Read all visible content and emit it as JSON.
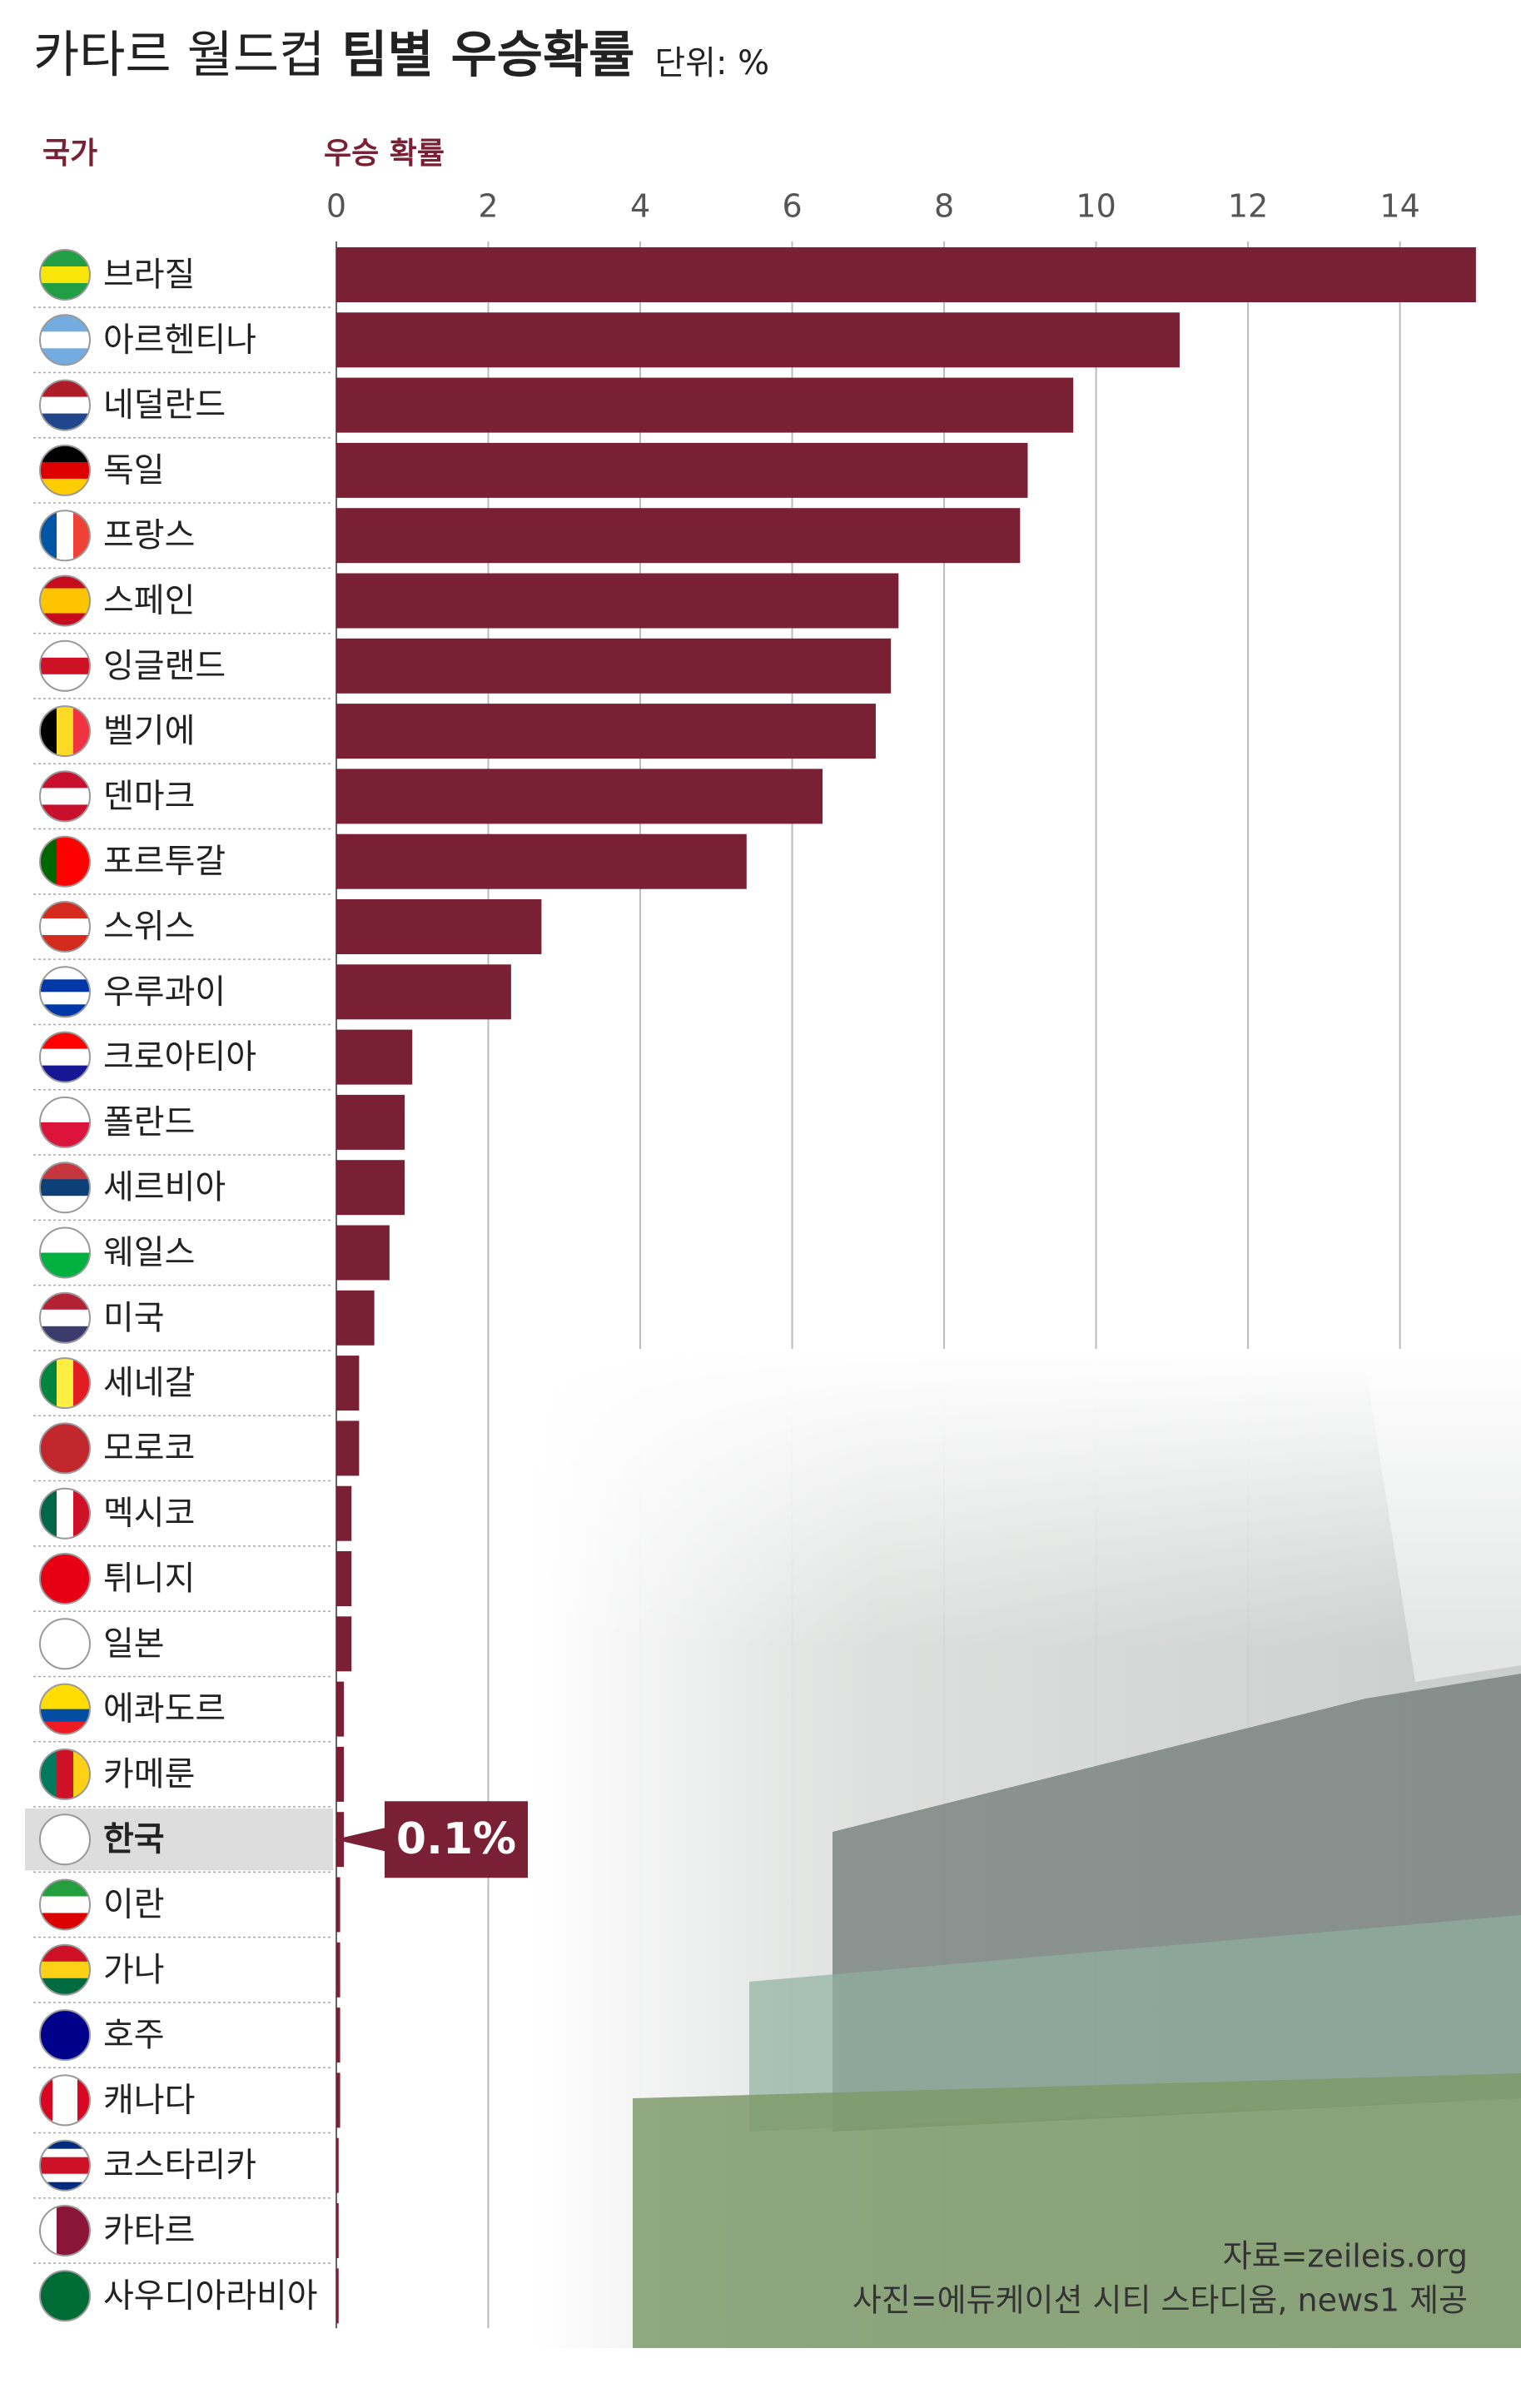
{
  "chart_data": {
    "type": "barh",
    "title": "카타르 월드컵",
    "title_bold": "팀별 우승확률",
    "unit": "단위: %",
    "category_label": "국가",
    "value_label": "우승 확률",
    "categories": [
      "브라질",
      "아르헨티나",
      "네덜란드",
      "독일",
      "프랑스",
      "스페인",
      "잉글랜드",
      "벨기에",
      "덴마크",
      "포르투갈",
      "스위스",
      "우루과이",
      "크로아티아",
      "폴란드",
      "세르비아",
      "웨일스",
      "미국",
      "세네갈",
      "모로코",
      "멕시코",
      "튀니지",
      "일본",
      "에콰도르",
      "카메룬",
      "한국",
      "이란",
      "가나",
      "호주",
      "캐나다",
      "코스타리카",
      "카타르",
      "사우디아라비아"
    ],
    "values": [
      15.0,
      11.1,
      9.7,
      9.1,
      9.0,
      7.4,
      7.3,
      7.1,
      6.4,
      5.4,
      2.7,
      2.3,
      1.0,
      0.9,
      0.9,
      0.7,
      0.5,
      0.3,
      0.3,
      0.2,
      0.2,
      0.2,
      0.1,
      0.1,
      0.1,
      0.05,
      0.05,
      0.05,
      0.05,
      0.03,
      0.03,
      0.03
    ],
    "value_labels": [
      null,
      null,
      null,
      null,
      null,
      null,
      null,
      null,
      null,
      null,
      null,
      null,
      null,
      null,
      null,
      null,
      null,
      null,
      null,
      null,
      null,
      null,
      null,
      null,
      "0.1%",
      null,
      null,
      null,
      null,
      null,
      null,
      null
    ],
    "color": "#7a2035",
    "xlim": [
      0,
      15.1
    ],
    "xticks": [
      0,
      2,
      4,
      6,
      8,
      10,
      12,
      14
    ],
    "grid": true,
    "source": "자료=zeileis.org",
    "photo_credit": "사진=에듀케이션 시티 스타디움, news1 제공"
  }
}
